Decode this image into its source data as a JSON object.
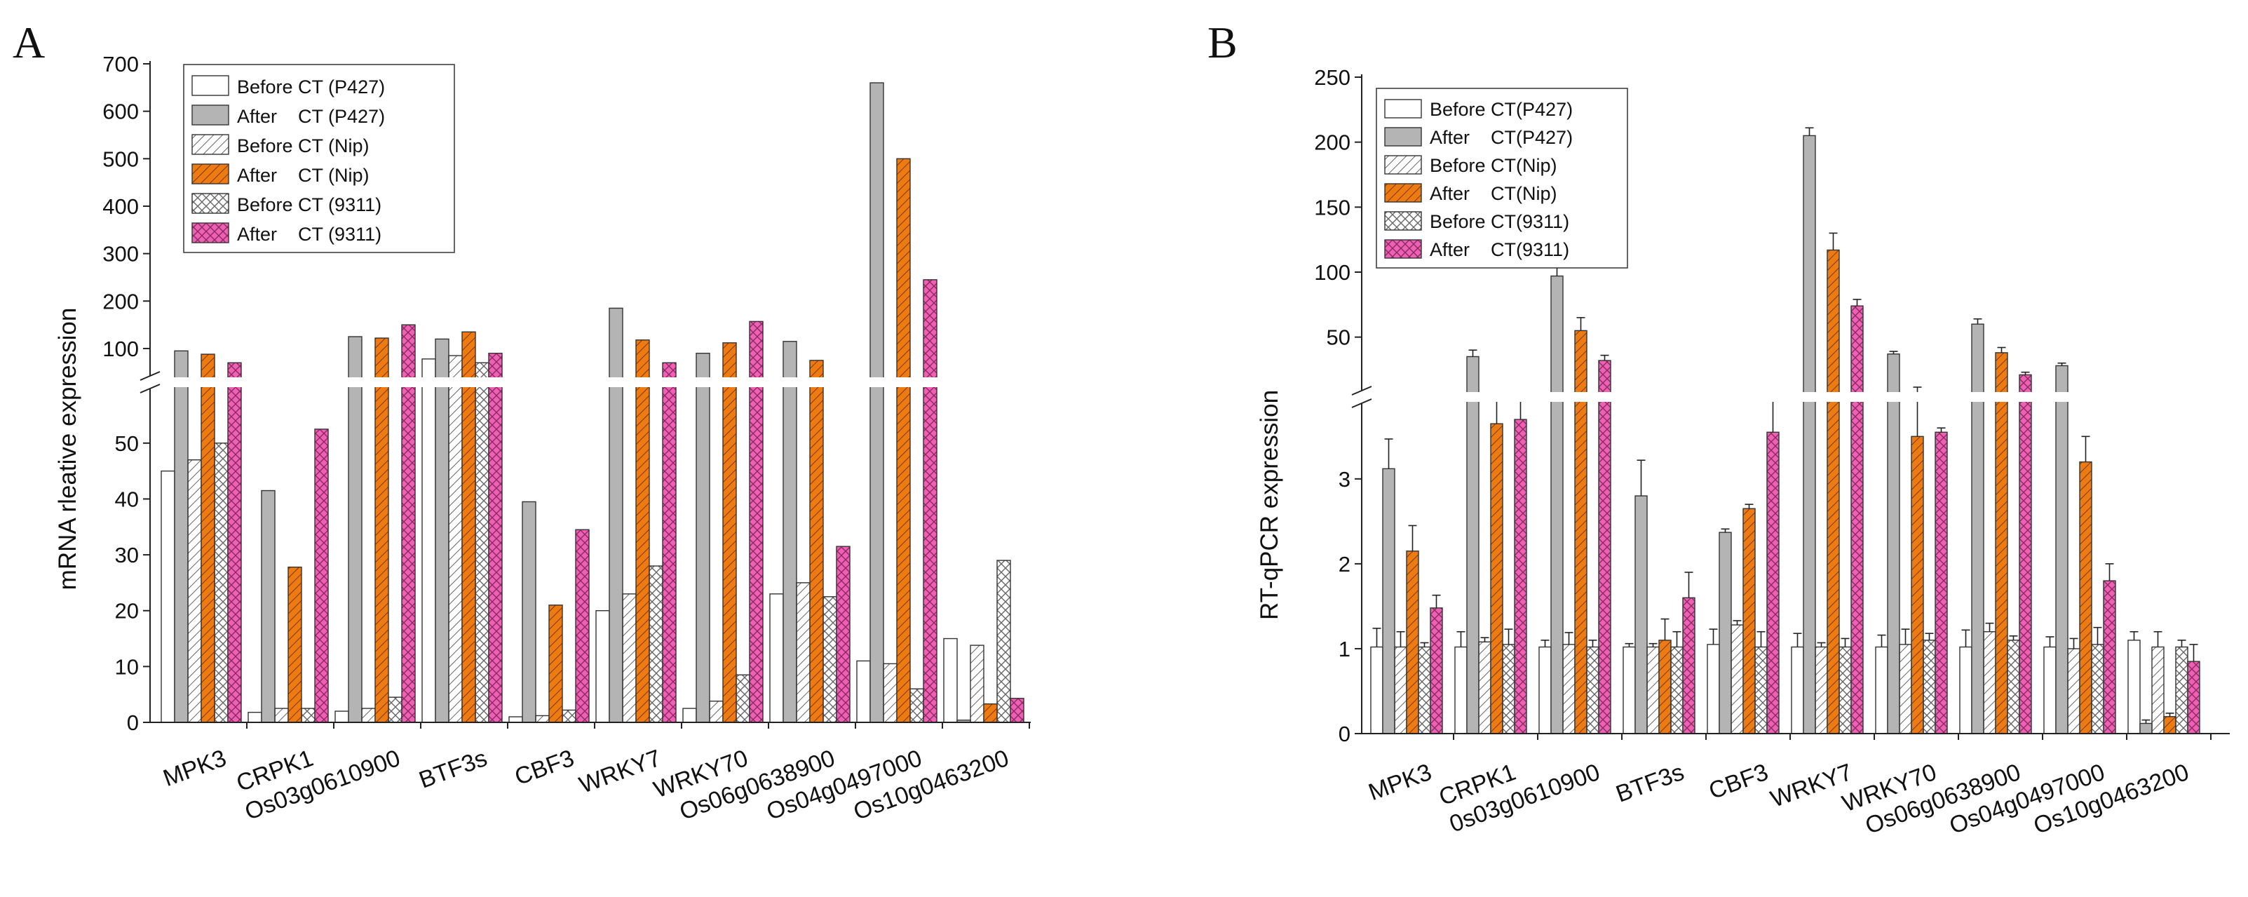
{
  "colors": {
    "before_p427": "#ffffff",
    "after_p427": "#b4b4b4",
    "before_nip": "#ffffff",
    "after_nip": "#ee7a12",
    "before_9311": "#ffffff",
    "after_9311": "#ee60b4"
  },
  "chart_data": [
    {
      "panel_label": "A",
      "type": "bar",
      "ylabel": "mRNA rleative expression",
      "xlabel": "",
      "y_axis": "broken",
      "ylim_lower": [
        0,
        55
      ],
      "ylim_upper": [
        60,
        700
      ],
      "yticks_lower": [
        "0",
        "10",
        "20",
        "30",
        "40",
        "50"
      ],
      "yticks_upper": [
        "100",
        "200",
        "300",
        "400",
        "500",
        "600",
        "700"
      ],
      "legend_position": "top-left",
      "categories": [
        "MPK3",
        "CRPK1",
        "Os03g0610900",
        "BTF3s",
        "CBF3",
        "WRKY7",
        "WRKY70",
        "Os06g0638900",
        "Os04g0497000",
        "Os10g0463200"
      ],
      "series": [
        {
          "name": "Before CT (P427)",
          "values": [
            45,
            1.8,
            2,
            78,
            1,
            20,
            2.5,
            23,
            11,
            15
          ]
        },
        {
          "name": "After    CT (P427)",
          "values": [
            95,
            41.5,
            125,
            120,
            39.5,
            185,
            90,
            115,
            660,
            0.4
          ]
        },
        {
          "name": "Before CT (Nip)",
          "values": [
            47,
            2.5,
            2.5,
            85,
            1.2,
            23,
            3.8,
            25,
            10.5,
            13.8
          ]
        },
        {
          "name": "After    CT (Nip)",
          "values": [
            88,
            27.8,
            122,
            135,
            21,
            118,
            112,
            75,
            500,
            3.3
          ]
        },
        {
          "name": "Before CT (9311)",
          "values": [
            50,
            2.5,
            4.5,
            70,
            2.2,
            28,
            8.5,
            22.5,
            6,
            29
          ]
        },
        {
          "name": "After    CT (9311)",
          "values": [
            70,
            52.5,
            150,
            90,
            34.5,
            70,
            157,
            31.5,
            245,
            4.3
          ]
        }
      ]
    },
    {
      "panel_label": "B",
      "type": "bar",
      "ylabel": "RT-qPCR expression",
      "xlabel": "",
      "y_axis": "broken",
      "ylim_lower": [
        0,
        3.8
      ],
      "ylim_upper": [
        25,
        250
      ],
      "yticks_lower": [
        "0",
        "1",
        "2",
        "3"
      ],
      "yticks_upper": [
        "50",
        "100",
        "150",
        "200",
        "250"
      ],
      "legend_position": "top-left",
      "categories": [
        "MPK3",
        "CRPK1",
        "0s03g0610900",
        "BTF3s",
        "CBF3",
        "WRKY7",
        "WRKY70",
        "Os06g0638900",
        "Os04g0497000",
        "Os10g0463200"
      ],
      "series": [
        {
          "name": "Before CT(P427)",
          "values": [
            1.02,
            1.02,
            1.02,
            1.02,
            1.05,
            1.02,
            1.02,
            1.02,
            1.02,
            1.1
          ],
          "errors": [
            0.22,
            0.18,
            0.08,
            0.04,
            0.18,
            0.16,
            0.14,
            0.2,
            0.12,
            0.1
          ]
        },
        {
          "name": "After    CT(P427)",
          "values": [
            3.12,
            35,
            97,
            2.8,
            2.37,
            205,
            37,
            60,
            28,
            0.12
          ],
          "errors": [
            0.35,
            5,
            9,
            0.42,
            0.04,
            6,
            2,
            4,
            2,
            0.04
          ]
        },
        {
          "name": "Before CT(Nip)",
          "values": [
            1.02,
            1.08,
            1.05,
            1.02,
            1.28,
            1.02,
            1.05,
            1.2,
            1.0,
            1.02
          ],
          "errors": [
            0.18,
            0.05,
            0.14,
            0.04,
            0.05,
            0.05,
            0.18,
            0.1,
            0.12,
            0.18
          ]
        },
        {
          "name": "After    CT(Nip)",
          "values": [
            2.15,
            3.65,
            55,
            1.1,
            2.65,
            117,
            3.5,
            38,
            3.2,
            0.2
          ],
          "errors": [
            0.3,
            1.5,
            10,
            0.25,
            0.05,
            13,
            8,
            4,
            0.3,
            0.04
          ]
        },
        {
          "name": "Before CT(9311)",
          "values": [
            1.02,
            1.05,
            1.02,
            1.02,
            1.02,
            1.02,
            1.1,
            1.1,
            1.05,
            1.02
          ],
          "errors": [
            0.05,
            0.18,
            0.08,
            0.18,
            0.18,
            0.1,
            0.08,
            0.05,
            0.2,
            0.08
          ]
        },
        {
          "name": "After    CT(9311)",
          "values": [
            1.48,
            3.7,
            32,
            1.6,
            3.55,
            74,
            3.55,
            21,
            1.8,
            0.85
          ],
          "errors": [
            0.15,
            2,
            4,
            0.3,
            2,
            5,
            0.05,
            2,
            0.2,
            0.2
          ]
        }
      ]
    }
  ]
}
